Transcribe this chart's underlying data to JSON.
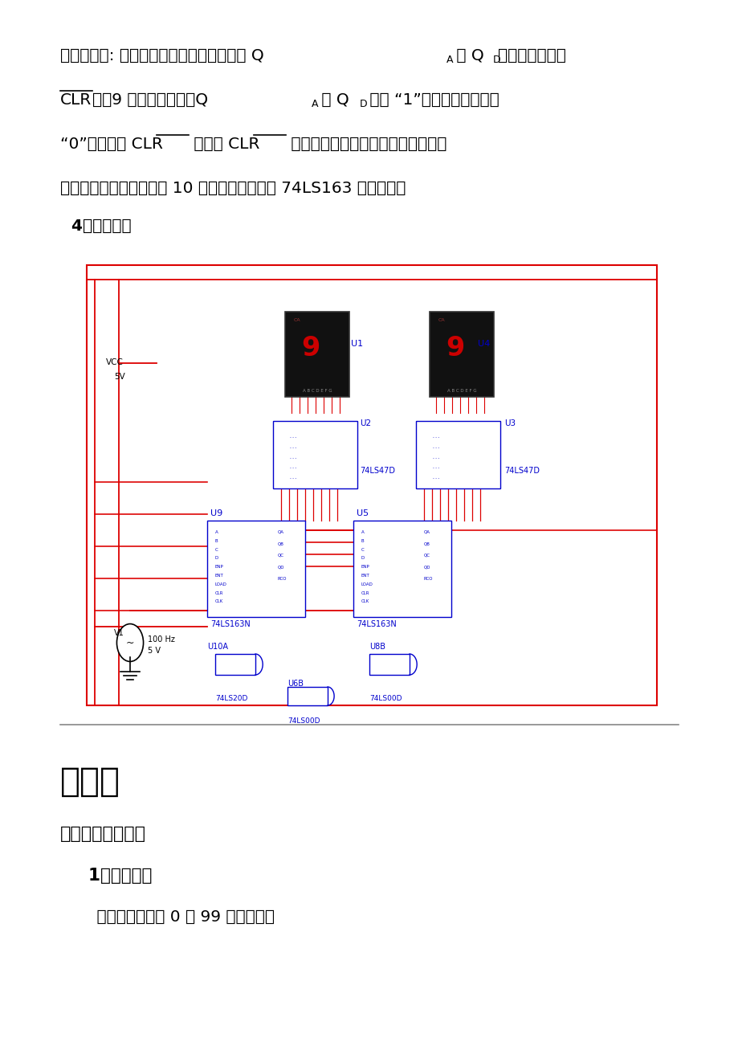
{
  "bg_color": "#ffffff",
  "page_width": 9.2,
  "page_height": 13.02,
  "text_color": "#000000",
  "blue_color": "#0000cc",
  "section4_title": "  4、电路仿真",
  "chapter_title": "第三章",
  "section1_title": "一、实验结果分析",
  "subsection1_title": "  1、设计结果",
  "body_text": "    该设计可以实现 0 到 99 循环计数。",
  "red": "#dd0000",
  "darkblue": "#0000cc",
  "divider_gray": "#888888"
}
